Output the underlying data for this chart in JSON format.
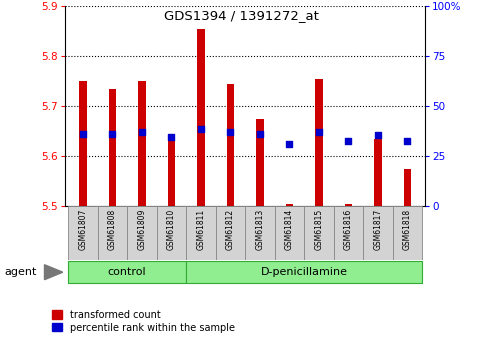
{
  "title": "GDS1394 / 1391272_at",
  "samples": [
    "GSM61807",
    "GSM61808",
    "GSM61809",
    "GSM61810",
    "GSM61811",
    "GSM61812",
    "GSM61813",
    "GSM61814",
    "GSM61815",
    "GSM61816",
    "GSM61817",
    "GSM61818"
  ],
  "bar_values": [
    5.75,
    5.735,
    5.75,
    5.635,
    5.855,
    5.745,
    5.675,
    5.505,
    5.755,
    5.505,
    5.635,
    5.575
  ],
  "percentile_values": [
    5.645,
    5.645,
    5.648,
    5.638,
    5.655,
    5.648,
    5.645,
    5.625,
    5.648,
    5.63,
    5.642,
    5.63
  ],
  "ymin": 5.5,
  "ymax": 5.9,
  "y2min": 0,
  "y2max": 100,
  "yticks": [
    5.5,
    5.6,
    5.7,
    5.8,
    5.9
  ],
  "y2ticks_vals": [
    0,
    25,
    50,
    75,
    100
  ],
  "y2ticks_labels": [
    "0",
    "25",
    "50",
    "75",
    "100%"
  ],
  "bar_color": "#cc0000",
  "dot_color": "#0000cc",
  "bar_bottom": 5.5,
  "n_control": 4,
  "control_label": "control",
  "drug_label": "D-penicillamine",
  "agent_label": "agent",
  "legend_bar_label": "transformed count",
  "legend_dot_label": "percentile rank within the sample",
  "label_area_color": "#d3d3d3",
  "group_area_color": "#90ee90",
  "bar_width": 0.25
}
